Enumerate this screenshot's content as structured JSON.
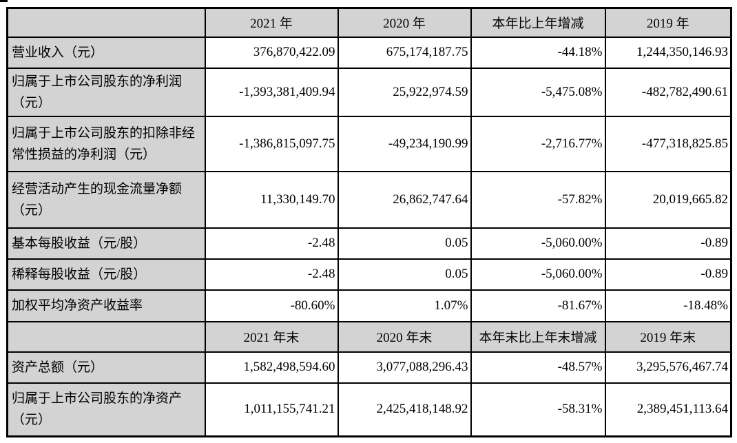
{
  "page": {
    "background": "#ffffff",
    "colors": {
      "header_bg": "#d3d3d3",
      "border": "#000000",
      "cell_bg": "#ffffff",
      "text": "#000000"
    }
  },
  "table": {
    "sections": [
      {
        "header": [
          "",
          "2021 年",
          "2020 年",
          "本年比上年增减",
          "2019 年"
        ],
        "rows": [
          {
            "label": "营业收入（元）",
            "values": [
              "376,870,422.09",
              "675,174,187.75",
              "-44.18%",
              "1,244,350,146.93"
            ]
          },
          {
            "label": "归属于上市公司股东的净利润（元）",
            "values": [
              "-1,393,381,409.94",
              "25,922,974.59",
              "-5,475.08%",
              "-482,782,490.61"
            ]
          },
          {
            "label": "归属于上市公司股东的扣除非经常性损益的净利润（元）",
            "values": [
              "-1,386,815,097.75",
              "-49,234,190.99",
              "-2,716.77%",
              "-477,318,825.85"
            ]
          },
          {
            "label": "经营活动产生的现金流量净额（元）",
            "values": [
              "11,330,149.70",
              "26,862,747.64",
              "-57.82%",
              "20,019,665.82"
            ]
          },
          {
            "label": "基本每股收益（元/股）",
            "values": [
              "-2.48",
              "0.05",
              "-5,060.00%",
              "-0.89"
            ]
          },
          {
            "label": "稀释每股收益（元/股）",
            "values": [
              "-2.48",
              "0.05",
              "-5,060.00%",
              "-0.89"
            ]
          },
          {
            "label": "加权平均净资产收益率",
            "values": [
              "-80.60%",
              "1.07%",
              "-81.67%",
              "-18.48%"
            ]
          }
        ]
      },
      {
        "header": [
          "",
          "2021 年末",
          "2020 年末",
          "本年末比上年末增减",
          "2019 年末"
        ],
        "rows": [
          {
            "label": "资产总额（元）",
            "values": [
              "1,582,498,594.60",
              "3,077,088,296.43",
              "-48.57%",
              "3,295,576,467.74"
            ]
          },
          {
            "label": "归属于上市公司股东的净资产（元）",
            "values": [
              "1,011,155,741.21",
              "2,425,418,148.92",
              "-58.31%",
              "2,389,451,113.64"
            ]
          }
        ]
      }
    ]
  }
}
